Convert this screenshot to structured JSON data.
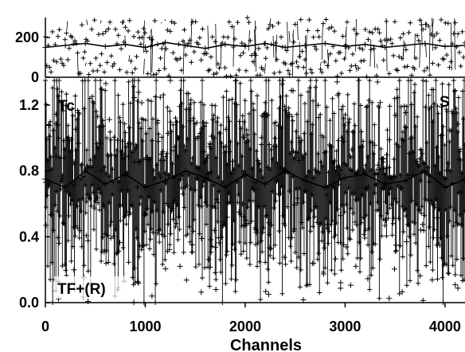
{
  "chart_data": [
    {
      "type": "scatter",
      "panel": "top",
      "xlabel": "",
      "ylabel": "",
      "xlim": [
        0,
        4200
      ],
      "ylim": [
        0,
        300
      ],
      "yticks": [
        0,
        200
      ],
      "ytick_labels": [
        "0",
        "200"
      ],
      "grid": false,
      "legend": "none",
      "annotations": [],
      "marker": "+",
      "series_color": "#000000",
      "series": [
        {
          "x": [
            0,
            200,
            400,
            600,
            800,
            1000,
            1200,
            1400,
            1600,
            1800,
            2000,
            2200,
            2400,
            2600,
            2800,
            3000,
            3200,
            3400,
            3600,
            3800,
            4000,
            4200
          ],
          "values": [
            150,
            160,
            170,
            155,
            165,
            150,
            175,
            160,
            145,
            165,
            155,
            170,
            150,
            160,
            170,
            155,
            165,
            150,
            160,
            170,
            155,
            160
          ]
        }
      ]
    },
    {
      "type": "scatter",
      "panel": "bottom",
      "xlabel": "Channels",
      "ylabel": "",
      "xlim": [
        0,
        4200
      ],
      "ylim": [
        0,
        1.35
      ],
      "xticks": [
        0,
        1000,
        2000,
        3000,
        4000
      ],
      "xtick_labels": [
        "0",
        "1000",
        "2000",
        "3000",
        "4000"
      ],
      "yticks": [
        0,
        0.4,
        0.8,
        1.2
      ],
      "ytick_labels": [
        "0.0",
        "0.4",
        "0.8",
        "1.2"
      ],
      "grid": false,
      "legend": "none",
      "annotations": [
        "Tc",
        "S",
        "TF+(R)"
      ],
      "marker": "+",
      "series_color": "#000000",
      "series": [
        {
          "x": [
            0,
            200,
            400,
            600,
            800,
            1000,
            1200,
            1400,
            1600,
            1800,
            2000,
            2200,
            2400,
            2600,
            2800,
            3000,
            3200,
            3400,
            3600,
            3800,
            4000,
            4200
          ],
          "values": [
            0.75,
            0.7,
            0.8,
            0.72,
            0.78,
            0.7,
            0.74,
            0.8,
            0.76,
            0.7,
            0.78,
            0.72,
            0.8,
            0.74,
            0.7,
            0.76,
            0.78,
            0.72,
            0.74,
            0.8,
            0.7,
            0.75
          ]
        }
      ]
    }
  ]
}
